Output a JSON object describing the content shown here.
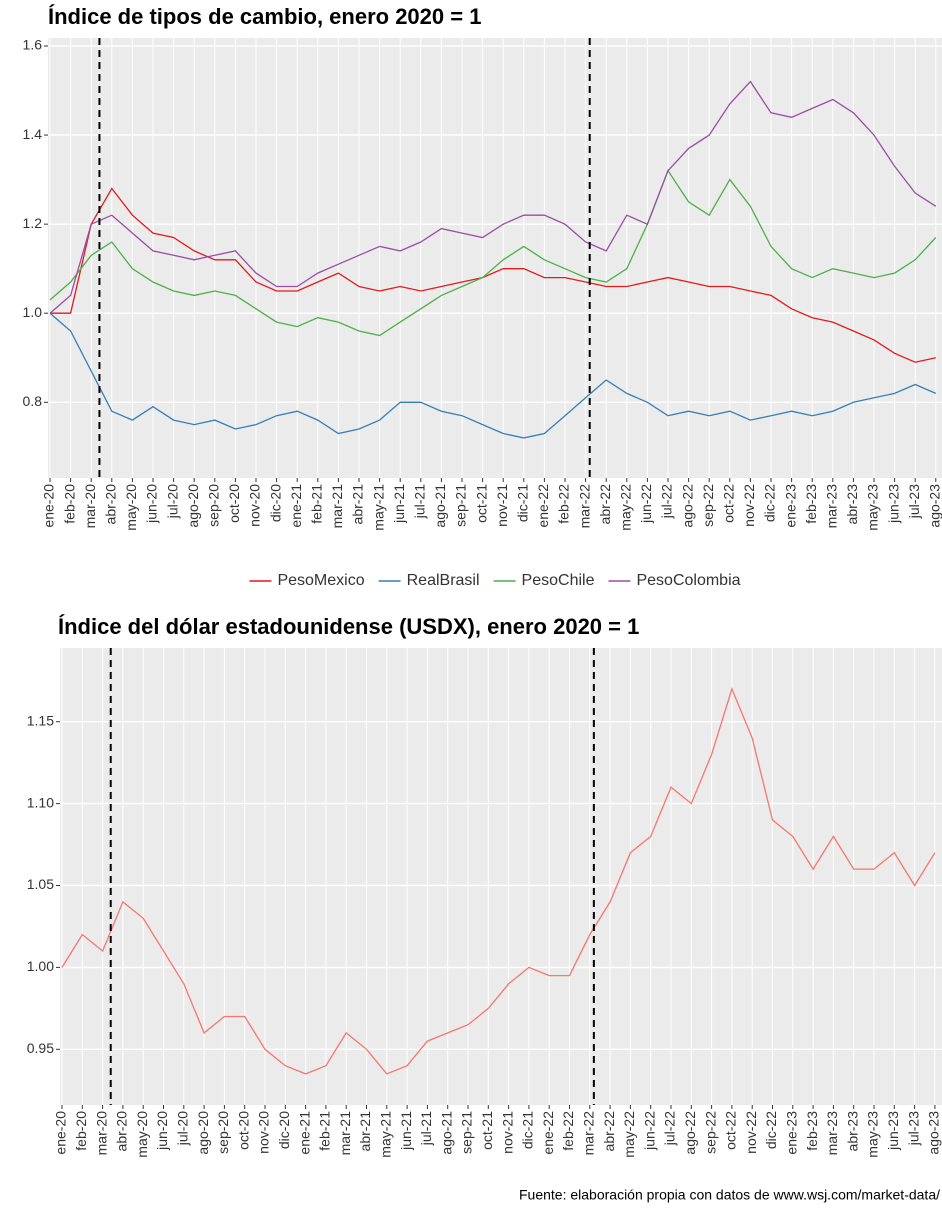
{
  "chart_data": [
    {
      "type": "line",
      "title": "Índice de tipos de cambio, enero 2020 = 1",
      "categories": [
        "ene-20",
        "feb-20",
        "mar-20",
        "abr-20",
        "may-20",
        "jun-20",
        "jul-20",
        "ago-20",
        "sep-20",
        "oct-20",
        "nov-20",
        "dic-20",
        "ene-21",
        "feb-21",
        "mar-21",
        "abr-21",
        "may-21",
        "jun-21",
        "jul-21",
        "ago-21",
        "sep-21",
        "oct-21",
        "nov-21",
        "dic-21",
        "ene-22",
        "feb-22",
        "mar-22",
        "abr-22",
        "may-22",
        "jun-22",
        "jul-22",
        "ago-22",
        "sep-22",
        "oct-22",
        "nov-22",
        "dic-22",
        "ene-23",
        "feb-23",
        "mar-23",
        "abr-23",
        "may-23",
        "jun-23",
        "jul-23",
        "ago-23"
      ],
      "series": [
        {
          "name": "PesoMexico",
          "color": "#e41a1c",
          "values": [
            1.0,
            1.0,
            1.2,
            1.28,
            1.22,
            1.18,
            1.17,
            1.14,
            1.12,
            1.12,
            1.07,
            1.05,
            1.05,
            1.07,
            1.09,
            1.06,
            1.05,
            1.06,
            1.05,
            1.06,
            1.07,
            1.08,
            1.1,
            1.1,
            1.08,
            1.08,
            1.07,
            1.06,
            1.06,
            1.07,
            1.08,
            1.07,
            1.06,
            1.06,
            1.05,
            1.04,
            1.01,
            0.99,
            0.98,
            0.96,
            0.94,
            0.91,
            0.89,
            0.9
          ]
        },
        {
          "name": "RealBrasil",
          "color": "#377eb8",
          "values": [
            1.0,
            0.96,
            0.87,
            0.78,
            0.76,
            0.79,
            0.76,
            0.75,
            0.76,
            0.74,
            0.75,
            0.77,
            0.78,
            0.76,
            0.73,
            0.74,
            0.76,
            0.8,
            0.8,
            0.78,
            0.77,
            0.75,
            0.73,
            0.72,
            0.73,
            0.77,
            0.81,
            0.85,
            0.82,
            0.8,
            0.77,
            0.78,
            0.77,
            0.78,
            0.76,
            0.77,
            0.78,
            0.77,
            0.78,
            0.8,
            0.81,
            0.82,
            0.84,
            0.82
          ]
        },
        {
          "name": "PesoChile",
          "color": "#4daf4a",
          "values": [
            1.03,
            1.07,
            1.13,
            1.16,
            1.1,
            1.07,
            1.05,
            1.04,
            1.05,
            1.04,
            1.01,
            0.98,
            0.97,
            0.99,
            0.98,
            0.96,
            0.95,
            0.98,
            1.01,
            1.04,
            1.06,
            1.08,
            1.12,
            1.15,
            1.12,
            1.1,
            1.08,
            1.07,
            1.1,
            1.2,
            1.32,
            1.25,
            1.22,
            1.3,
            1.24,
            1.15,
            1.1,
            1.08,
            1.1,
            1.09,
            1.08,
            1.09,
            1.12,
            1.17
          ]
        },
        {
          "name": "PesoColombia",
          "color": "#984ea3",
          "values": [
            1.0,
            1.04,
            1.2,
            1.22,
            1.18,
            1.14,
            1.13,
            1.12,
            1.13,
            1.14,
            1.09,
            1.06,
            1.06,
            1.09,
            1.11,
            1.13,
            1.15,
            1.14,
            1.16,
            1.19,
            1.18,
            1.17,
            1.2,
            1.22,
            1.22,
            1.2,
            1.16,
            1.14,
            1.22,
            1.2,
            1.32,
            1.37,
            1.4,
            1.47,
            1.52,
            1.45,
            1.44,
            1.46,
            1.48,
            1.45,
            1.4,
            1.33,
            1.27,
            1.24
          ]
        }
      ],
      "ylim": [
        0.63,
        1.618
      ],
      "yticks": [
        0.8,
        {
          "value": 1,
          "label": "1.0"
        },
        1.2,
        1.4,
        1.6
      ],
      "vlines": [
        2.4,
        26.2
      ],
      "grid": true,
      "legend": "bottom"
    },
    {
      "type": "line",
      "title": "Índice del dólar estadounidense (USDX), enero 2020 = 1",
      "categories": [
        "ene-20",
        "feb-20",
        "mar-20",
        "abr-20",
        "may-20",
        "jun-20",
        "jul-20",
        "ago-20",
        "sep-20",
        "oct-20",
        "nov-20",
        "dic-20",
        "ene-21",
        "feb-21",
        "mar-21",
        "abr-21",
        "may-21",
        "jun-21",
        "jul-21",
        "ago-21",
        "sep-21",
        "oct-21",
        "nov-21",
        "dic-21",
        "ene-22",
        "feb-22",
        "mar-22",
        "abr-22",
        "may-22",
        "jun-22",
        "jul-22",
        "ago-22",
        "sep-22",
        "oct-22",
        "nov-22",
        "dic-22",
        "ene-23",
        "feb-23",
        "mar-23",
        "abr-23",
        "may-23",
        "jun-23",
        "jul-23",
        "ago-23"
      ],
      "series": [
        {
          "color": "#f8766d",
          "values": [
            1.0,
            1.02,
            1.01,
            1.04,
            1.03,
            1.01,
            0.99,
            0.96,
            0.97,
            0.97,
            0.95,
            0.94,
            0.935,
            0.94,
            0.96,
            0.95,
            0.935,
            0.94,
            0.955,
            0.96,
            0.965,
            0.975,
            0.99,
            1.0,
            0.995,
            0.995,
            1.02,
            1.04,
            1.07,
            1.08,
            1.11,
            1.1,
            1.13,
            1.17,
            1.14,
            1.09,
            1.08,
            1.06,
            1.08,
            1.06,
            1.06,
            1.07,
            1.05,
            1.07
          ]
        }
      ],
      "ylim": [
        0.916,
        1.195
      ],
      "yticks": [
        0.95,
        {
          "value": 1,
          "label": "1.00"
        },
        1.05,
        {
          "value": 1.1,
          "label": "1.10"
        },
        1.15
      ],
      "vlines": [
        2.4,
        26.2
      ],
      "grid": true
    }
  ],
  "source": "Fuente: elaboración propia con datos de www.wsj.com/market-data/"
}
